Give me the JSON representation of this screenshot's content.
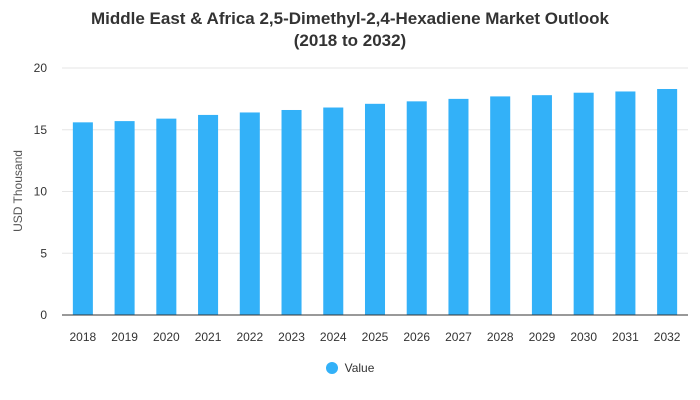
{
  "colors": {
    "bar": "#33B1F8",
    "grid": "#E6E6E6",
    "axis": "#333333",
    "text": "#333333"
  },
  "chart_data": {
    "type": "bar",
    "title_lines": [
      "Middle East & Africa 2,5-Dimethyl-2,4-Hexadiene Market Outlook",
      "(2018 to 2032)"
    ],
    "xlabel": "",
    "ylabel": "USD Thousand",
    "ylim": [
      0,
      20
    ],
    "yticks": [
      0,
      5,
      10,
      15,
      20
    ],
    "grid": true,
    "legend_position": "bottom-center",
    "categories": [
      "2018",
      "2019",
      "2020",
      "2021",
      "2022",
      "2023",
      "2024",
      "2025",
      "2026",
      "2027",
      "2028",
      "2029",
      "2030",
      "2031",
      "2032"
    ],
    "series": [
      {
        "name": "Value",
        "values": [
          15.6,
          15.7,
          15.9,
          16.2,
          16.4,
          16.6,
          16.8,
          17.1,
          17.3,
          17.5,
          17.7,
          17.8,
          18.0,
          18.1,
          18.3
        ]
      }
    ]
  }
}
